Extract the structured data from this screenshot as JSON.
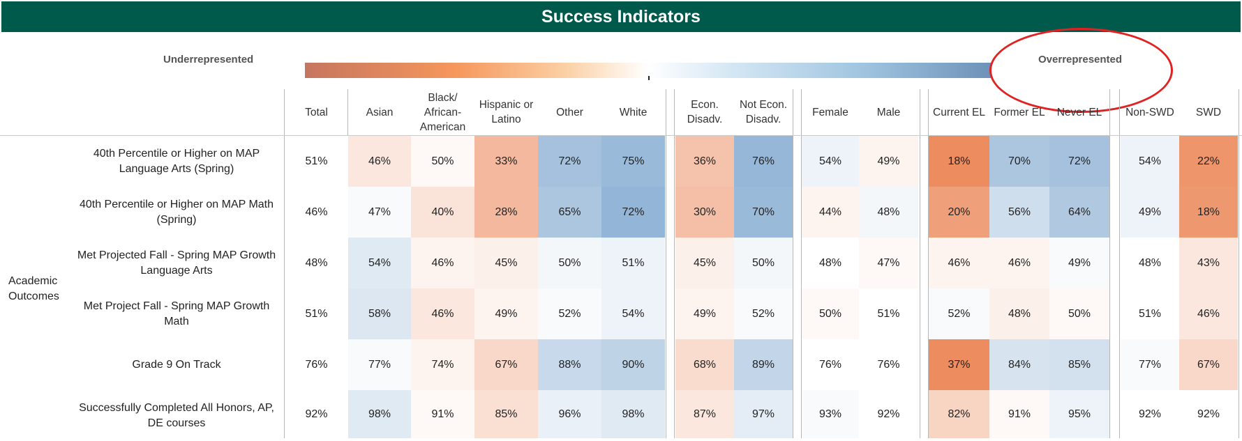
{
  "title": "Success Indicators",
  "legend": {
    "low_label": "Underrepresented",
    "high_label": "Overrepresented",
    "low_color": "#c5765f",
    "mid_color": "#ffffff",
    "high_color": "#6e92b8",
    "annotation": "red-circle-around-overrepresented"
  },
  "chart_data": {
    "type": "heatmap",
    "title": "Success Indicators",
    "row_group": "Academic Outcomes",
    "columns": [
      {
        "label": "Total",
        "group": "overall"
      },
      {
        "label": "Asian",
        "group": "race"
      },
      {
        "label": "Black/ African-American",
        "group": "race"
      },
      {
        "label": "Hispanic or Latino",
        "group": "race"
      },
      {
        "label": "Other",
        "group": "race"
      },
      {
        "label": "White",
        "group": "race"
      },
      {
        "label": "Econ. Disadv.",
        "group": "econ"
      },
      {
        "label": "Not Econ. Disadv.",
        "group": "econ"
      },
      {
        "label": "Female",
        "group": "gender"
      },
      {
        "label": "Male",
        "group": "gender"
      },
      {
        "label": "Current EL",
        "group": "el"
      },
      {
        "label": "Former EL",
        "group": "el"
      },
      {
        "label": "Never EL",
        "group": "el"
      },
      {
        "label": "Non-SWD",
        "group": "swd"
      },
      {
        "label": "SWD",
        "group": "swd"
      }
    ],
    "rows": [
      {
        "label": "40th Percentile or Higher on MAP Language Arts (Spring)",
        "values": [
          51,
          46,
          50,
          33,
          72,
          75,
          36,
          76,
          54,
          49,
          18,
          70,
          72,
          54,
          22
        ]
      },
      {
        "label": "40th Percentile or Higher on MAP Math (Spring)",
        "values": [
          46,
          47,
          40,
          28,
          65,
          72,
          30,
          70,
          44,
          48,
          20,
          56,
          64,
          49,
          18
        ]
      },
      {
        "label": "Met Projected Fall - Spring MAP Growth Language Arts",
        "values": [
          48,
          54,
          46,
          45,
          50,
          51,
          45,
          50,
          48,
          47,
          46,
          46,
          49,
          48,
          43
        ]
      },
      {
        "label": "Met Project Fall - Spring MAP Growth Math",
        "values": [
          51,
          58,
          46,
          49,
          52,
          54,
          49,
          52,
          50,
          51,
          52,
          48,
          50,
          51,
          46
        ]
      },
      {
        "label": "Grade 9 On Track",
        "values": [
          76,
          77,
          74,
          67,
          88,
          90,
          68,
          89,
          76,
          76,
          37,
          84,
          85,
          77,
          67
        ]
      },
      {
        "label": "Successfully Completed All Honors, AP, DE courses",
        "values": [
          92,
          98,
          91,
          85,
          96,
          98,
          87,
          97,
          93,
          92,
          82,
          91,
          95,
          92,
          92
        ]
      }
    ],
    "value_suffix": "%",
    "color_scale": "diverging, relative to Total"
  }
}
